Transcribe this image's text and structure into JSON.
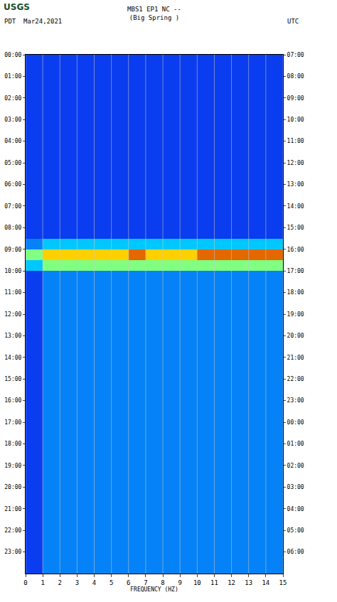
{
  "chart_data": {
    "type": "heatmap",
    "title": "MBS1 EP1 NC --",
    "subtitle": "(Big Spring )",
    "logo": "USGS",
    "left_label": "PDT  Mar24,2021",
    "right_label": "UTC",
    "x_label": "FREQUENCY (HZ)",
    "xlim": [
      0,
      15
    ],
    "xticks": [
      0,
      1,
      2,
      3,
      4,
      5,
      6,
      7,
      8,
      9,
      10,
      11,
      12,
      13,
      14,
      15
    ],
    "grid": true,
    "ylim": [
      24,
      0
    ],
    "yticks": [
      {
        "value": 0,
        "label": "00:00"
      },
      {
        "value": 1,
        "label": "01:00"
      },
      {
        "value": 2,
        "label": "02:00"
      },
      {
        "value": 3,
        "label": "03:00"
      },
      {
        "value": 4,
        "label": "04:00"
      },
      {
        "value": 5,
        "label": "05:00"
      },
      {
        "value": 6,
        "label": "06:00"
      },
      {
        "value": 7,
        "label": "07:00"
      },
      {
        "value": 8,
        "label": "08:00"
      },
      {
        "value": 9,
        "label": "09:00"
      },
      {
        "value": 10,
        "label": "10:00"
      },
      {
        "value": 11,
        "label": "11:00"
      },
      {
        "value": 12,
        "label": "12:00"
      },
      {
        "value": 13,
        "label": "13:00"
      },
      {
        "value": 14,
        "label": "14:00"
      },
      {
        "value": 15,
        "label": "15:00"
      },
      {
        "value": 16,
        "label": "16:00"
      },
      {
        "value": 17,
        "label": "17:00"
      },
      {
        "value": 18,
        "label": "18:00"
      },
      {
        "value": 19,
        "label": "19:00"
      },
      {
        "value": 20,
        "label": "20:00"
      },
      {
        "value": 21,
        "label": "21:00"
      },
      {
        "value": 22,
        "label": "22:00"
      },
      {
        "value": 23,
        "label": "23:00"
      }
    ],
    "y2lim": [
      24,
      0
    ],
    "y2ticks": [
      {
        "value": 0,
        "label": "07:00"
      },
      {
        "value": 1,
        "label": "08:00"
      },
      {
        "value": 2,
        "label": "09:00"
      },
      {
        "value": 3,
        "label": "10:00"
      },
      {
        "value": 4,
        "label": "11:00"
      },
      {
        "value": 5,
        "label": "12:00"
      },
      {
        "value": 6,
        "label": "13:00"
      },
      {
        "value": 7,
        "label": "14:00"
      },
      {
        "value": 8,
        "label": "15:00"
      },
      {
        "value": 9,
        "label": "16:00"
      },
      {
        "value": 10,
        "label": "17:00"
      },
      {
        "value": 11,
        "label": "18:00"
      },
      {
        "value": 12,
        "label": "19:00"
      },
      {
        "value": 13,
        "label": "20:00"
      },
      {
        "value": 14,
        "label": "21:00"
      },
      {
        "value": 15,
        "label": "22:00"
      },
      {
        "value": 16,
        "label": "23:00"
      },
      {
        "value": 17,
        "label": "00:00"
      },
      {
        "value": 18,
        "label": "01:00"
      },
      {
        "value": 19,
        "label": "02:00"
      },
      {
        "value": 20,
        "label": "03:00"
      },
      {
        "value": 21,
        "label": "04:00"
      },
      {
        "value": 22,
        "label": "05:00"
      },
      {
        "value": 23,
        "label": "06:00"
      }
    ],
    "x": [
      0.5,
      1.5,
      2.5,
      3.5,
      4.5,
      5.5,
      6.5,
      7.5,
      8.5,
      9.5,
      10.5,
      11.5,
      12.5,
      13.5,
      14.5
    ],
    "y": [
      0.25,
      0.75,
      1.25,
      1.75,
      2.25,
      2.75,
      3.25,
      3.75,
      4.25,
      4.75,
      5.25,
      5.75,
      6.25,
      6.75,
      7.25,
      7.75,
      8.25,
      8.75,
      9.25,
      9.75,
      10.25,
      10.75,
      11.25,
      11.75,
      12.25,
      12.75,
      13.25,
      13.75,
      14.25,
      14.75,
      15.25,
      15.75,
      16.25,
      16.75,
      17.25,
      17.75,
      18.25,
      18.75,
      19.25,
      19.75,
      20.25,
      20.75,
      21.25,
      21.75,
      22.25,
      22.75,
      23.25,
      23.75
    ],
    "zlim": [
      0,
      10
    ],
    "z": [
      [
        2,
        2,
        2,
        2,
        2,
        2,
        2,
        2,
        2,
        2,
        2,
        2,
        2,
        2,
        2
      ],
      [
        2,
        2,
        2,
        2,
        2,
        2,
        2,
        2,
        2,
        2,
        2,
        2,
        2,
        2,
        2
      ],
      [
        2,
        2,
        2,
        2,
        2,
        2,
        2,
        2,
        2,
        2,
        2,
        2,
        2,
        2,
        2
      ],
      [
        2,
        2,
        2,
        2,
        2,
        2,
        2,
        2,
        2,
        2,
        2,
        2,
        2,
        2,
        2
      ],
      [
        2,
        2,
        2,
        2,
        2,
        2,
        2,
        2,
        2,
        2,
        2,
        2,
        2,
        2,
        2
      ],
      [
        2,
        2,
        2,
        2,
        2,
        2,
        2,
        2,
        2,
        2,
        2,
        2,
        2,
        2,
        2
      ],
      [
        2,
        2,
        2,
        2,
        2,
        2,
        2,
        2,
        2,
        2,
        2,
        2,
        2,
        2,
        2
      ],
      [
        2,
        2,
        2,
        2,
        2,
        2,
        2,
        2,
        2,
        2,
        2,
        2,
        2,
        2,
        2
      ],
      [
        2,
        2,
        2,
        2,
        2,
        2,
        2,
        2,
        2,
        2,
        2,
        2,
        2,
        2,
        2
      ],
      [
        2,
        2,
        2,
        2,
        2,
        2,
        2,
        2,
        2,
        2,
        2,
        2,
        2,
        2,
        2
      ],
      [
        2,
        2,
        2,
        2,
        2,
        2,
        2,
        2,
        2,
        2,
        2,
        2,
        2,
        2,
        2
      ],
      [
        2,
        2,
        2,
        2,
        2,
        2,
        2,
        2,
        2,
        2,
        2,
        2,
        2,
        2,
        2
      ],
      [
        2,
        2,
        2,
        2,
        2,
        2,
        2,
        2,
        2,
        2,
        2,
        2,
        2,
        2,
        2
      ],
      [
        2,
        2,
        2,
        2,
        2,
        2,
        2,
        2,
        2,
        2,
        2,
        2,
        2,
        2,
        2
      ],
      [
        2,
        2,
        2,
        2,
        2,
        2,
        2,
        2,
        2,
        2,
        2,
        2,
        2,
        2,
        2
      ],
      [
        2,
        2,
        2,
        2,
        2,
        2,
        2,
        2,
        2,
        2,
        2,
        2,
        2,
        2,
        2
      ],
      [
        2,
        2,
        2,
        2,
        2,
        2,
        2,
        2,
        2,
        2,
        2,
        2,
        2,
        2,
        2
      ],
      [
        3,
        4,
        4,
        4,
        4,
        4,
        4,
        4,
        4,
        4,
        4,
        4,
        4,
        4,
        4
      ],
      [
        6,
        8,
        8,
        8,
        8,
        8,
        9,
        8,
        8,
        8,
        9,
        9,
        9,
        9,
        9
      ],
      [
        4,
        6,
        6,
        6,
        6,
        6,
        6,
        6,
        6,
        6,
        6,
        6,
        6,
        6,
        6
      ],
      [
        2,
        3,
        3,
        3,
        3,
        3,
        3,
        3,
        3,
        3,
        3,
        3,
        3,
        3,
        3
      ],
      [
        2,
        3,
        3,
        3,
        3,
        3,
        3,
        3,
        3,
        3,
        3,
        3,
        3,
        3,
        3
      ],
      [
        2,
        3,
        3,
        3,
        3,
        3,
        3,
        3,
        3,
        3,
        3,
        3,
        3,
        3,
        3
      ],
      [
        2,
        3,
        3,
        3,
        3,
        3,
        3,
        3,
        3,
        3,
        3,
        3,
        3,
        3,
        3
      ],
      [
        2,
        3,
        3,
        3,
        3,
        3,
        3,
        3,
        3,
        3,
        3,
        3,
        3,
        3,
        3
      ],
      [
        2,
        3,
        3,
        3,
        3,
        3,
        3,
        3,
        3,
        3,
        3,
        3,
        3,
        3,
        3
      ],
      [
        2,
        3,
        3,
        3,
        3,
        3,
        3,
        3,
        3,
        3,
        3,
        3,
        3,
        3,
        3
      ],
      [
        2,
        3,
        3,
        3,
        3,
        3,
        3,
        3,
        3,
        3,
        3,
        3,
        3,
        3,
        3
      ],
      [
        2,
        3,
        3,
        3,
        3,
        3,
        3,
        3,
        3,
        3,
        3,
        3,
        3,
        3,
        3
      ],
      [
        2,
        3,
        3,
        3,
        3,
        3,
        3,
        3,
        3,
        3,
        3,
        3,
        3,
        3,
        3
      ],
      [
        2,
        3,
        3,
        3,
        3,
        3,
        3,
        3,
        3,
        3,
        3,
        3,
        3,
        3,
        3
      ],
      [
        2,
        3,
        3,
        3,
        3,
        3,
        3,
        3,
        3,
        3,
        3,
        3,
        3,
        3,
        3
      ],
      [
        2,
        3,
        3,
        3,
        3,
        3,
        3,
        3,
        3,
        3,
        3,
        3,
        3,
        3,
        3
      ],
      [
        2,
        3,
        3,
        3,
        3,
        3,
        3,
        3,
        3,
        3,
        3,
        3,
        3,
        3,
        3
      ],
      [
        2,
        3,
        3,
        3,
        3,
        3,
        3,
        3,
        3,
        3,
        3,
        3,
        3,
        3,
        3
      ],
      [
        2,
        3,
        3,
        3,
        3,
        3,
        3,
        3,
        3,
        3,
        3,
        3,
        3,
        3,
        3
      ],
      [
        2,
        3,
        3,
        3,
        3,
        3,
        3,
        3,
        3,
        3,
        3,
        3,
        3,
        3,
        3
      ],
      [
        2,
        3,
        3,
        3,
        3,
        3,
        3,
        3,
        3,
        3,
        3,
        3,
        3,
        3,
        3
      ],
      [
        2,
        3,
        3,
        3,
        3,
        3,
        3,
        3,
        3,
        3,
        3,
        3,
        3,
        3,
        3
      ],
      [
        2,
        3,
        3,
        3,
        3,
        3,
        3,
        3,
        3,
        3,
        3,
        3,
        3,
        3,
        3
      ],
      [
        2,
        3,
        3,
        3,
        3,
        3,
        3,
        3,
        3,
        3,
        3,
        3,
        3,
        3,
        3
      ],
      [
        2,
        3,
        3,
        3,
        3,
        3,
        3,
        3,
        3,
        3,
        3,
        3,
        3,
        3,
        3
      ],
      [
        2,
        3,
        3,
        3,
        3,
        3,
        3,
        3,
        3,
        3,
        3,
        3,
        3,
        3,
        3
      ],
      [
        2,
        3,
        3,
        3,
        3,
        3,
        3,
        3,
        3,
        3,
        3,
        3,
        3,
        3,
        3
      ],
      [
        2,
        3,
        3,
        3,
        3,
        3,
        3,
        3,
        3,
        3,
        3,
        3,
        3,
        3,
        3
      ],
      [
        2,
        3,
        3,
        3,
        3,
        3,
        3,
        3,
        3,
        3,
        3,
        3,
        3,
        3,
        3
      ],
      [
        2,
        3,
        3,
        3,
        3,
        3,
        3,
        3,
        3,
        3,
        3,
        3,
        3,
        3,
        3
      ],
      [
        2,
        3,
        3,
        3,
        3,
        3,
        3,
        3,
        3,
        3,
        3,
        3,
        3,
        3,
        3
      ]
    ]
  }
}
